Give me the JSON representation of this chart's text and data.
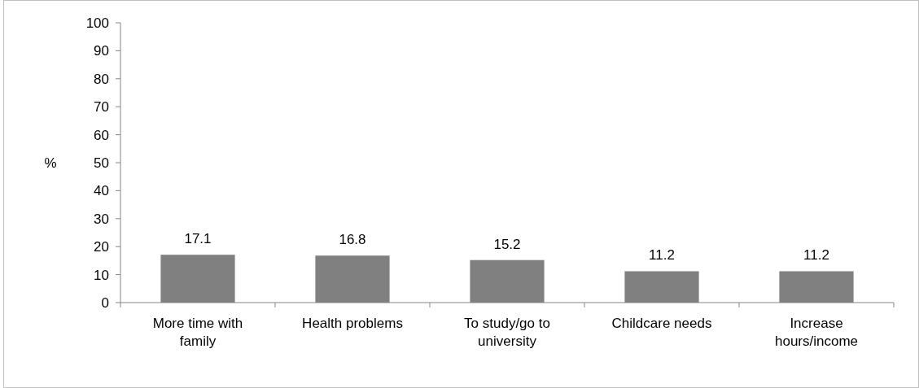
{
  "chart_data": {
    "type": "bar",
    "ylabel": "%",
    "categories": [
      "More time with family",
      "Health problems",
      "To study/go to university",
      "Childcare needs",
      "Increase hours/income"
    ],
    "values": [
      17.1,
      16.8,
      15.2,
      11.2,
      11.2
    ],
    "color": "#808080",
    "ylim": [
      0,
      100
    ],
    "yticks": [
      0,
      10,
      20,
      30,
      40,
      50,
      60,
      70,
      80,
      90,
      100
    ],
    "data_labels": true,
    "grid": false
  }
}
